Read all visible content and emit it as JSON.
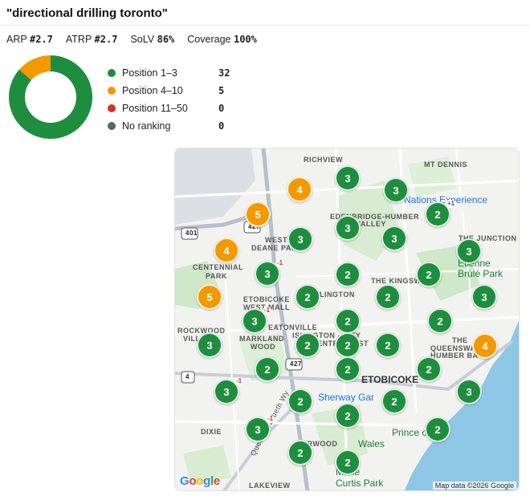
{
  "report": {
    "title": "\"directional drilling toronto\"",
    "metrics": [
      {
        "label": "ARP",
        "value": "#2.7"
      },
      {
        "label": "ATRP",
        "value": "#2.7"
      },
      {
        "label": "SoLV",
        "value": "86%"
      },
      {
        "label": "Coverage",
        "value": "100%"
      }
    ]
  },
  "legend": [
    {
      "label": "Position 1–3",
      "count": "32",
      "color": "#1e8e3e"
    },
    {
      "label": "Position 4–10",
      "count": "5",
      "color": "#f29900"
    },
    {
      "label": "Position 11–50",
      "count": "0",
      "color": "#d93025"
    },
    {
      "label": "No ranking",
      "count": "0",
      "color": "#5f6368"
    }
  ],
  "donut": {
    "slices": [
      {
        "label": "Position 1–3",
        "value": 32,
        "color": "#1e8e3e"
      },
      {
        "label": "Position 4–10",
        "value": 5,
        "color": "#f29900"
      }
    ]
  },
  "map": {
    "places": {
      "richview": "RICHVIEW",
      "mt_dennis": "MT DENNIS",
      "nations": "Nations Experience",
      "edenbridge": "EDENBRIDGE-HUMBER",
      "valley": "VALLEY",
      "west_deane": "WEST",
      "deane_park": "DEANE PARK",
      "the_junction": "THE JUNCTION",
      "etienne": "Étienne",
      "brule": "Brûlé Park",
      "centennial": "CENTENNIAL",
      "park": "PARK",
      "the_kingsway": "THE KINGSW",
      "etobicoke_west": "ETOBICOKE",
      "west_mall": "WEST MALL",
      "islington": "LINGTON",
      "eatonville": "EATONVILLE",
      "rockwood": "ROCKWOOD",
      "ville": "VILL",
      "markland": "MARKLAND",
      "wood": "WOOD",
      "islington_city": "ISLINGTON - CITY",
      "centre_west": "CENTRE WEST",
      "the": "THE",
      "queensway": "QUEENSWA",
      "humber_bay": "HUMBER BA",
      "etobicoke": "ETOBICOKE",
      "sherway": "Sherway Gar",
      "dixie": "DIXIE",
      "prince_of": "Prince of",
      "wales": "Wales",
      "alderwood": "ERWOOD",
      "marie": "Marie",
      "curtis": "Curtis Park",
      "lakeview": "LAKEVIEW",
      "qew": "Queen Elizabeth Wy"
    },
    "shields": {
      "h401": "401",
      "h427a": "427",
      "h427b": "427",
      "h4": "4"
    },
    "pins": [
      {
        "rank": "4",
        "delta": ""
      },
      {
        "rank": "3",
        "delta": ""
      },
      {
        "rank": "3",
        "delta": ""
      },
      {
        "rank": "5",
        "delta": ""
      },
      {
        "rank": "2",
        "delta": "+1"
      },
      {
        "rank": "3",
        "delta": ""
      },
      {
        "rank": "3",
        "delta": ""
      },
      {
        "rank": "3",
        "delta": ""
      },
      {
        "rank": "4",
        "delta": ""
      },
      {
        "rank": "3",
        "delta": "-1"
      },
      {
        "rank": "3",
        "delta": ""
      },
      {
        "rank": "2",
        "delta": ""
      },
      {
        "rank": "2",
        "delta": ""
      },
      {
        "rank": "2",
        "delta": ""
      },
      {
        "rank": "5",
        "delta": ""
      },
      {
        "rank": "3",
        "delta": ""
      },
      {
        "rank": "2",
        "delta": ""
      },
      {
        "rank": "2",
        "delta": ""
      },
      {
        "rank": "3",
        "delta": "-1"
      },
      {
        "rank": "2",
        "delta": ""
      },
      {
        "rank": "2",
        "delta": ""
      },
      {
        "rank": "3",
        "delta": ""
      },
      {
        "rank": "2",
        "delta": ""
      },
      {
        "rank": "2",
        "delta": ""
      },
      {
        "rank": "2",
        "delta": ""
      },
      {
        "rank": "4",
        "delta": ""
      },
      {
        "rank": "2",
        "delta": ""
      },
      {
        "rank": "2",
        "delta": ""
      },
      {
        "rank": "2",
        "delta": ""
      },
      {
        "rank": "3",
        "delta": "-1"
      },
      {
        "rank": "2",
        "delta": ""
      },
      {
        "rank": "3",
        "delta": ""
      },
      {
        "rank": "2",
        "delta": ""
      },
      {
        "rank": "2",
        "delta": ""
      },
      {
        "rank": "3",
        "delta": "-1"
      },
      {
        "rank": "2",
        "delta": ""
      },
      {
        "rank": "2",
        "delta": ""
      }
    ],
    "google": "Google",
    "attribution": "Map data ©2026 Google"
  }
}
